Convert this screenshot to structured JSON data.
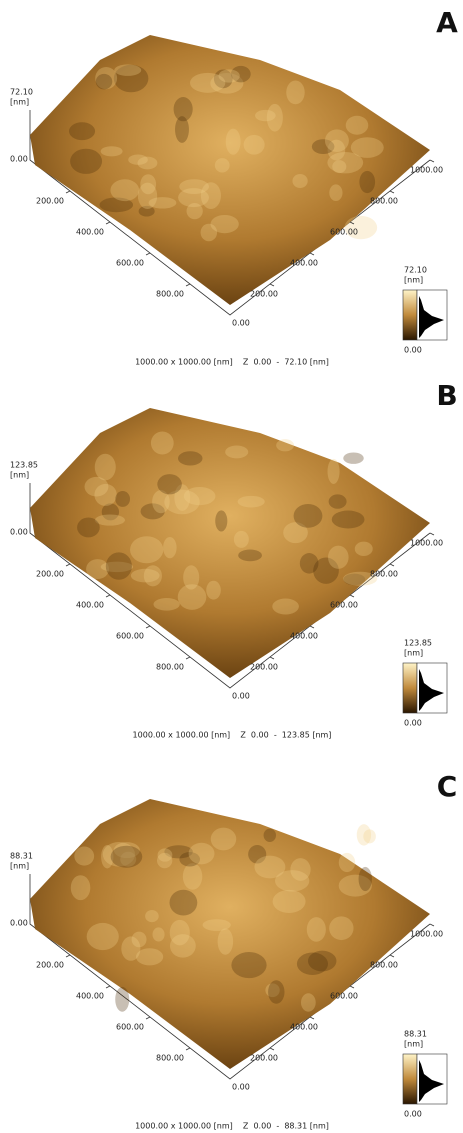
{
  "panels": [
    {
      "label": "A",
      "z_max": "72.10",
      "z_unit": "[nm]",
      "z_min": "0.00",
      "left_ticks": [
        "200.00",
        "400.00",
        "600.00",
        "800.00"
      ],
      "origin": "0.00",
      "right_ticks": [
        "200.00",
        "400.00",
        "600.00",
        "800.00",
        "1000.00"
      ],
      "colorbar_max": "72.10",
      "colorbar_unit": "[nm]",
      "colorbar_min": "0.00",
      "caption": "1000.00 x 1000.00 [nm]    Z  0.00  -  72.10 [nm]"
    },
    {
      "label": "B",
      "z_max": "123.85",
      "z_unit": "[nm]",
      "z_min": "0.00",
      "left_ticks": [
        "200.00",
        "400.00",
        "600.00",
        "800.00"
      ],
      "origin": "0.00",
      "right_ticks": [
        "200.00",
        "400.00",
        "600.00",
        "800.00",
        "1000.00"
      ],
      "colorbar_max": "123.85",
      "colorbar_unit": "[nm]",
      "colorbar_min": "0.00",
      "caption": "1000.00 x 1000.00 [nm]    Z  0.00  -  123.85 [nm]"
    },
    {
      "label": "C",
      "z_max": "88.31",
      "z_unit": "[nm]",
      "z_min": "0.00",
      "left_ticks": [
        "200.00",
        "400.00",
        "600.00",
        "800.00"
      ],
      "origin": "0.00",
      "right_ticks": [
        "200.00",
        "400.00",
        "600.00",
        "800.00",
        "1000.00"
      ],
      "colorbar_max": "88.31",
      "colorbar_unit": "[nm]",
      "colorbar_min": "0.00",
      "caption": "1000.00 x 1000.00 [nm]    Z  0.00  -  88.31 [nm]"
    }
  ]
}
